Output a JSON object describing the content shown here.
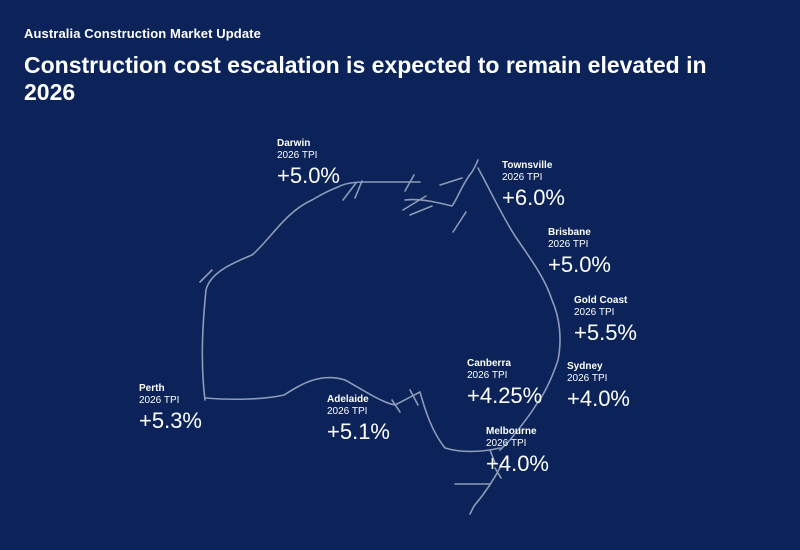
{
  "header": {
    "kicker": "Australia Construction Market Update",
    "title": "Construction cost escalation is expected to remain elevated in 2026"
  },
  "colors": {
    "background": "#0b2358",
    "text": "#ffffff",
    "map_outline": "#8e9bb8"
  },
  "cities": {
    "darwin": {
      "name": "Darwin",
      "label": "2026 TPI",
      "value": "+5.0%"
    },
    "townsville": {
      "name": "Townsville",
      "label": "2026 TPI",
      "value": "+6.0%"
    },
    "brisbane": {
      "name": "Brisbane",
      "label": "2026 TPI",
      "value": "+5.0%"
    },
    "gold_coast": {
      "name": "Gold Coast",
      "label": "2026 TPI",
      "value": "+5.5%"
    },
    "canberra": {
      "name": "Canberra",
      "label": "2026 TPI",
      "value": "+4.25%"
    },
    "sydney": {
      "name": "Sydney",
      "label": "2026 TPI",
      "value": "+4.0%"
    },
    "perth": {
      "name": "Perth",
      "label": "2026 TPI",
      "value": "+5.3%"
    },
    "adelaide": {
      "name": "Adelaide",
      "label": "2026 TPI",
      "value": "+5.1%"
    },
    "melbourne": {
      "name": "Melbourne",
      "label": "2026 TPI",
      "value": "+4.0%"
    }
  }
}
